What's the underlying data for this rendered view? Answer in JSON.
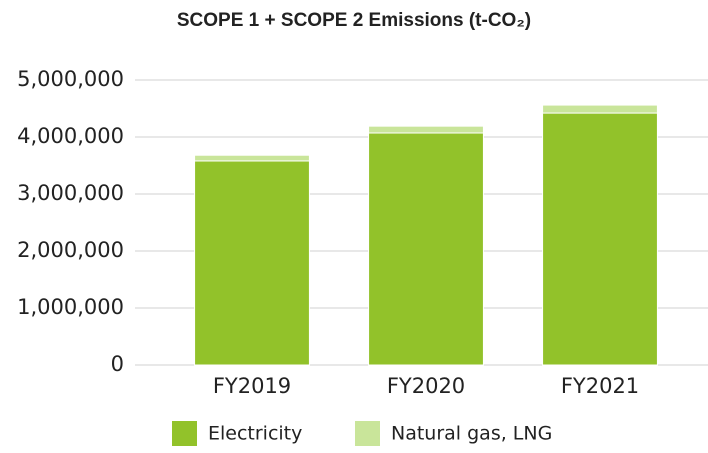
{
  "chart_data": {
    "type": "stacked_bar",
    "title": "SCOPE 1 + SCOPE 2 Emissions (t-CO₂)",
    "categories": [
      "FY2019",
      "FY2020",
      "FY2021"
    ],
    "series": [
      {
        "name": "Electricity",
        "color": "#92c22a",
        "values": [
          3580000,
          4070000,
          4420000
        ]
      },
      {
        "name": "Natural gas, LNG",
        "color": "#c9e59a",
        "values": [
          100000,
          120000,
          140000
        ]
      }
    ],
    "ylim": [
      0,
      5000000
    ],
    "yticks": [
      0,
      {
        "value": 1000000,
        "label": "1,000,000"
      },
      {
        "value": 2000000,
        "label": "2,000,000"
      },
      {
        "value": 3000000,
        "label": "3,000,000"
      },
      {
        "value": 4000000,
        "label": "4,000,000"
      },
      {
        "value": 5000000,
        "label": "5,000,000"
      }
    ],
    "grid": true,
    "legend": "bottom"
  }
}
